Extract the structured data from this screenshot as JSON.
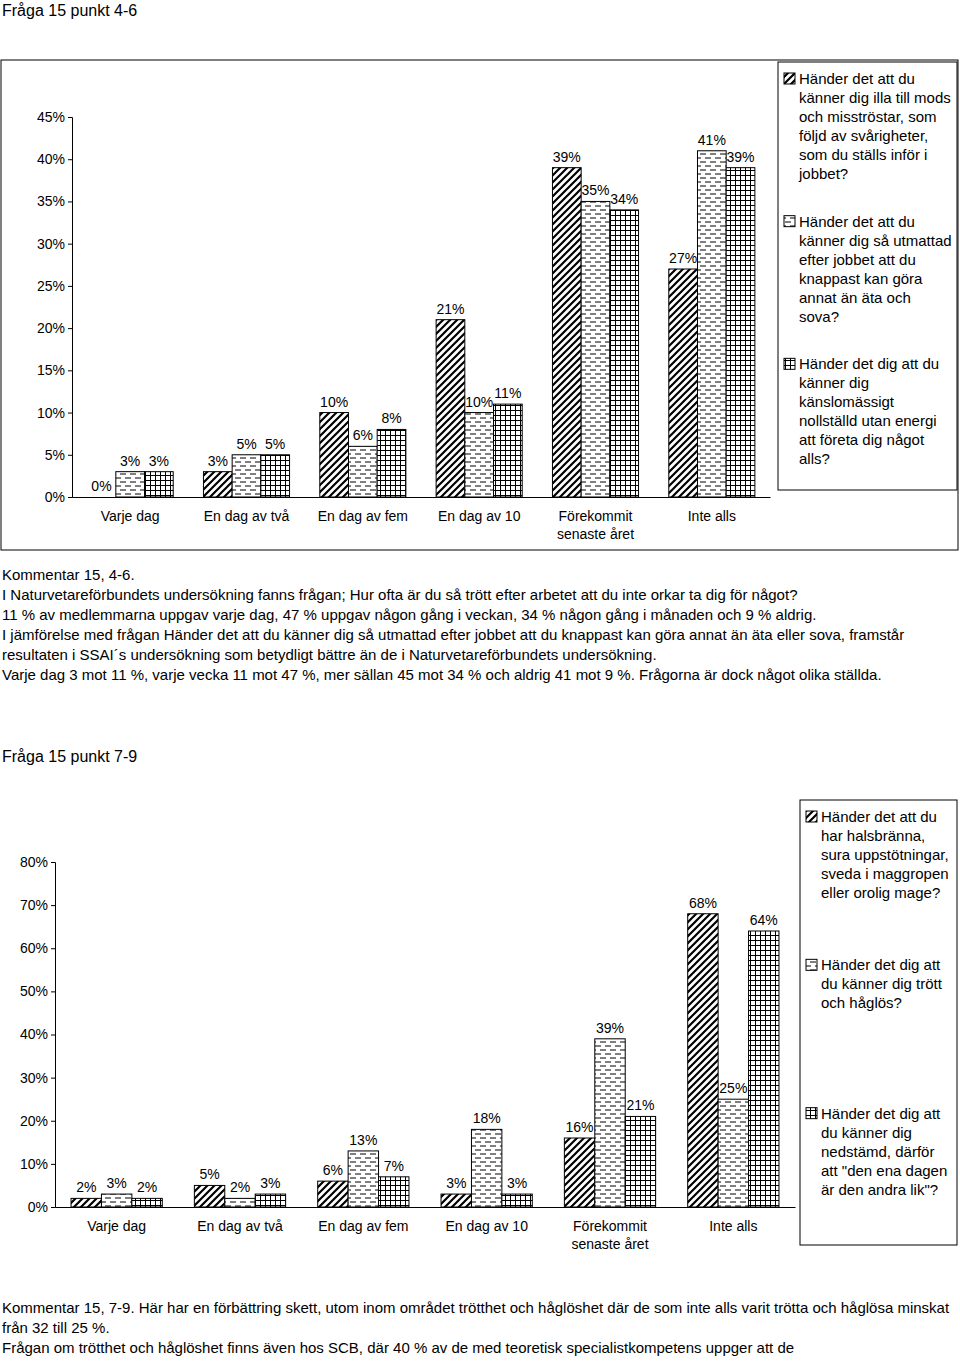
{
  "document": {
    "heading_1": "Fråga 15 punkt 4-6",
    "comment_1": [
      "Kommentar 15, 4-6.",
      "I Naturvetareförbundets undersökning fanns frågan; Hur ofta är du så trött efter arbetet att du inte orkar ta dig för något?",
      "11 % av medlemmarna uppgav varje dag, 47 % uppgav någon gång i veckan, 34 % någon gång i månaden och 9 % aldrig.",
      "I jämförelse med frågan Händer det att du känner dig så utmattad efter jobbet att du knappast kan göra annat än äta eller sova, framstår resultaten i SSAI´s undersökning som betydligt bättre än de i Naturvetareförbundets undersökning.",
      "Varje dag 3 mot 11 %, varje vecka 11 mot 47 %, mer sällan 45 mot 34 % och aldrig 41 mot 9 %. Frågorna är dock något olika ställda."
    ],
    "heading_2": "Fråga 15 punkt 7-9",
    "comment_2": [
      "Kommentar 15, 7-9. Här har en förbättring skett, utom inom området trötthet och håglöshet där de som inte alls varit trötta och håglösa minskat från 32 till 25 %.",
      "Frågan om trötthet och håglöshet finns även hos SCB, där 40 % av de med teoretisk specialistkompetens uppger att de"
    ]
  },
  "chart_data": [
    {
      "type": "bar",
      "categories": [
        "Varje dag",
        "En dag av två",
        "En dag av fem",
        "En dag av 10",
        "Förekommit senaste året",
        "Inte alls"
      ],
      "series": [
        {
          "name": "Händer det att du känner dig illa till mods och misströstar, som följd av svårigheter, som du ställs inför i jobbet?",
          "values": [
            0,
            3,
            10,
            21,
            39,
            27
          ],
          "value_labels": [
            "0%",
            "3%",
            "10%",
            "21%",
            "39%",
            "27%"
          ]
        },
        {
          "name": "Händer det att du känner dig så utmattad efter jobbet att du knappast kan göra annat än äta och sova?",
          "values": [
            3,
            5,
            6,
            10,
            35,
            41
          ],
          "value_labels": [
            "3%",
            "5%",
            "6%",
            "10%",
            "35%",
            "41%"
          ]
        },
        {
          "name": "Händer det dig att du känner dig känslomässigt nollställd utan energi att företa dig något alls?",
          "values": [
            3,
            5,
            8,
            11,
            34,
            39
          ],
          "value_labels": [
            "3%",
            "5%",
            "8%",
            "11%",
            "34%",
            "39%"
          ]
        }
      ],
      "ylim": [
        0,
        45
      ],
      "yticks": [
        {
          "value": 0,
          "label": "0%"
        },
        {
          "value": 5,
          "label": "5%"
        },
        {
          "value": 10,
          "label": "10%"
        },
        {
          "value": 15,
          "label": "15%"
        },
        {
          "value": 20,
          "label": "20%"
        },
        {
          "value": 25,
          "label": "25%"
        },
        {
          "value": 30,
          "label": "30%"
        },
        {
          "value": 35,
          "label": "35%"
        },
        {
          "value": 40,
          "label": "40%"
        },
        {
          "value": 45,
          "label": "45%"
        }
      ],
      "data_labels": true,
      "legend": "right",
      "grid": false
    },
    {
      "type": "bar",
      "categories": [
        "Varje dag",
        "En dag av två",
        "En dag av fem",
        "En dag av 10",
        "Förekommit senaste året",
        "Inte alls"
      ],
      "series": [
        {
          "name": "Händer det att du har halsbränna, sura uppstötningar, sveda i maggropen eller orolig mage?",
          "values": [
            2,
            5,
            6,
            3,
            16,
            68
          ],
          "value_labels": [
            "2%",
            "5%",
            "6%",
            "3%",
            "16%",
            "68%"
          ]
        },
        {
          "name": "Händer det dig att du känner dig trött och håglös?",
          "values": [
            3,
            2,
            13,
            18,
            39,
            25
          ],
          "value_labels": [
            "3%",
            "2%",
            "13%",
            "18%",
            "39%",
            "25%"
          ]
        },
        {
          "name": "Händer det dig att du känner dig nedstämd, därför att \"den ena dagen är den andra lik\"?",
          "values": [
            2,
            3,
            7,
            3,
            21,
            64
          ],
          "value_labels": [
            "2%",
            "3%",
            "7%",
            "3%",
            "21%",
            "64%"
          ]
        }
      ],
      "ylim": [
        0,
        80
      ],
      "yticks": [
        {
          "value": 0,
          "label": "0%"
        },
        {
          "value": 10,
          "label": "10%"
        },
        {
          "value": 20,
          "label": "20%"
        },
        {
          "value": 30,
          "label": "30%"
        },
        {
          "value": 40,
          "label": "40%"
        },
        {
          "value": 50,
          "label": "50%"
        },
        {
          "value": 60,
          "label": "60%"
        },
        {
          "value": 70,
          "label": "70%"
        },
        {
          "value": 80,
          "label": "80%"
        }
      ],
      "data_labels": true,
      "legend": "right",
      "grid": false
    }
  ]
}
